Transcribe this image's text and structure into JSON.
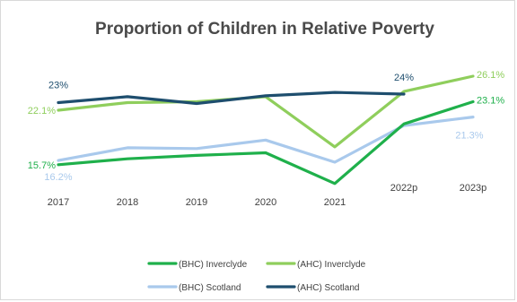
{
  "chart_data": {
    "type": "line",
    "title": "Proportion of Children in Relative Poverty",
    "categories": [
      "2017",
      "2018",
      "2019",
      "2020",
      "2021",
      "2022p",
      "2023p"
    ],
    "ylim": [
      10,
      30
    ],
    "grid": false,
    "legend_position": "bottom",
    "series": [
      {
        "name": "(BHC) Inverclyde",
        "color": "#1fb04b",
        "values": [
          15.7,
          16.4,
          16.8,
          17.1,
          13.5,
          20.5,
          23.1
        ]
      },
      {
        "name": "(AHC) Inverclyde",
        "color": "#8fce5c",
        "values": [
          22.1,
          23.0,
          23.1,
          23.7,
          17.8,
          24.3,
          26.1
        ]
      },
      {
        "name": "(BHC) Scotland",
        "color": "#a9c9ec",
        "values": [
          16.2,
          17.7,
          17.6,
          18.6,
          16.0,
          20.3,
          21.3
        ]
      },
      {
        "name": "(AHC) Scotland",
        "color": "#1e4e6e",
        "values": [
          23.0,
          23.7,
          22.9,
          23.8,
          24.2,
          24.0,
          null
        ]
      }
    ],
    "data_labels": [
      {
        "series": 0,
        "index": 0,
        "text": "15.7%",
        "place": "left-of-first"
      },
      {
        "series": 0,
        "index": 6,
        "text": "23.1%",
        "place": "right-of-last"
      },
      {
        "series": 1,
        "index": 0,
        "text": "22.1%",
        "place": "left-of-first"
      },
      {
        "series": 1,
        "index": 6,
        "text": "26.1%",
        "place": "right-of-last"
      },
      {
        "series": 2,
        "index": 0,
        "text": "16.2%",
        "place": "below-first"
      },
      {
        "series": 2,
        "index": 6,
        "text": "21.3%",
        "place": "below-last"
      },
      {
        "series": 3,
        "index": 0,
        "text": "23%",
        "place": "above-first"
      },
      {
        "series": 3,
        "index": 5,
        "text": "24%",
        "place": "above-last"
      }
    ]
  }
}
